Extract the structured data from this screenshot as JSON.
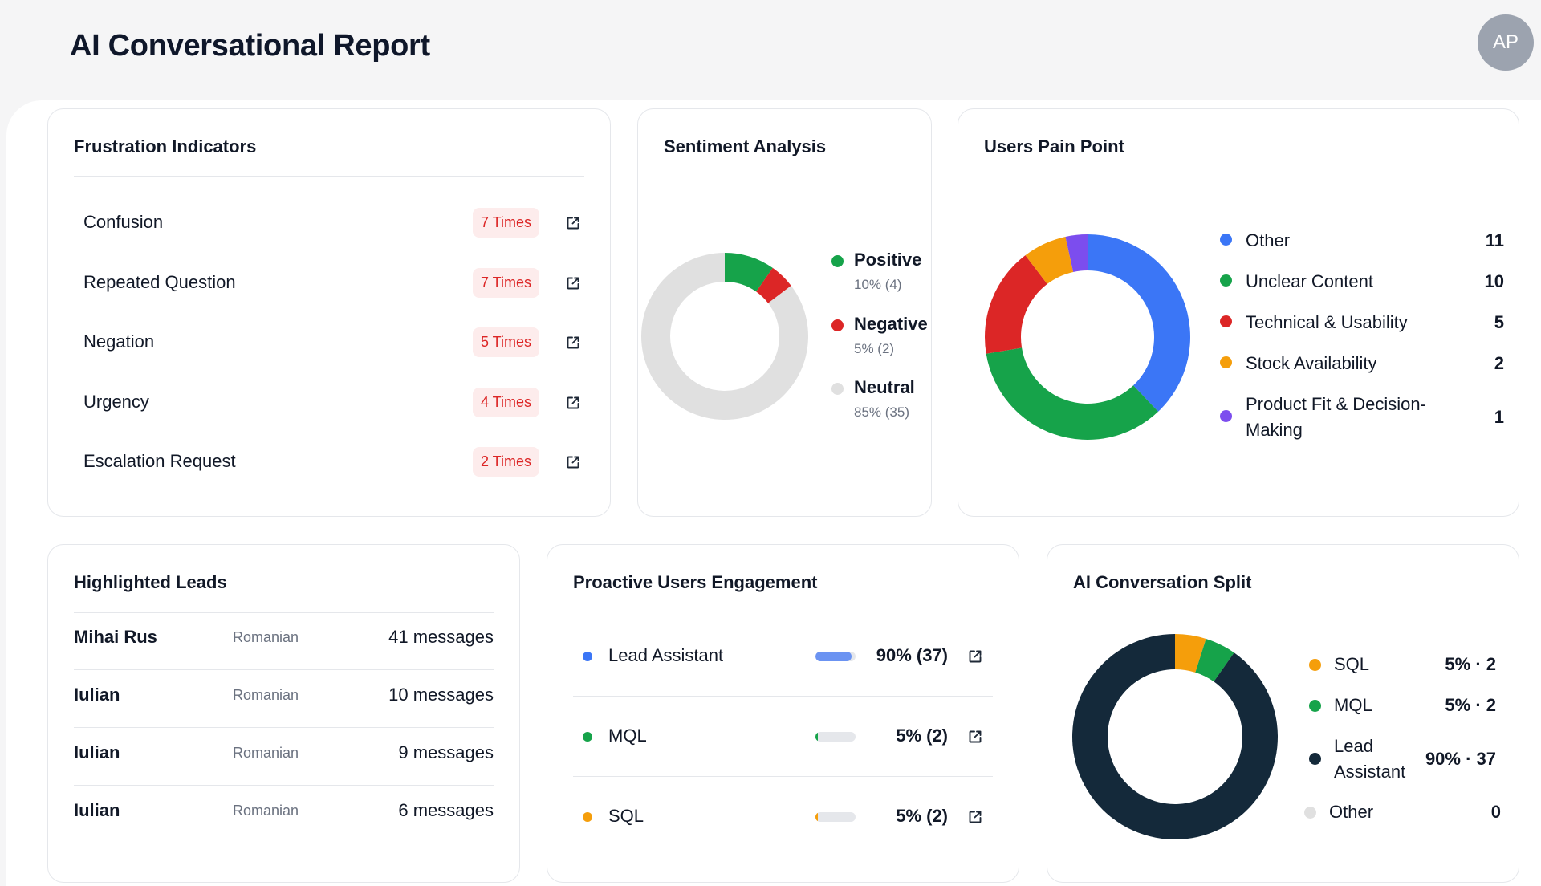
{
  "page": {
    "title": "AI Conversational Report",
    "avatar_initials": "AP"
  },
  "frustration": {
    "title": "Frustration Indicators",
    "items": [
      {
        "label": "Confusion",
        "count": "7 Times"
      },
      {
        "label": "Repeated Question",
        "count": "7 Times"
      },
      {
        "label": "Negation",
        "count": "5 Times"
      },
      {
        "label": "Urgency",
        "count": "4 Times"
      },
      {
        "label": "Escalation Request",
        "count": "2 Times"
      }
    ]
  },
  "sentiment": {
    "title": "Sentiment Analysis",
    "items": [
      {
        "label": "Positive",
        "sub": "10% (4)",
        "color": "#16a34a",
        "value": 4
      },
      {
        "label": "Negative",
        "sub": "5% (2)",
        "color": "#dc2626",
        "value": 2
      },
      {
        "label": "Neutral",
        "sub": "85% (35)",
        "color": "#e0e0e0",
        "value": 35
      }
    ]
  },
  "painpoint": {
    "title": "Users Pain Point",
    "items": [
      {
        "label": "Other",
        "value": "11",
        "color": "#3b76f6"
      },
      {
        "label": "Unclear Content",
        "value": "10",
        "color": "#16a34a"
      },
      {
        "label": "Technical & Usability",
        "value": "5",
        "color": "#dc2626"
      },
      {
        "label": "Stock Availability",
        "value": "2",
        "color": "#f59e0b"
      },
      {
        "label": "Product Fit & Decision-Making",
        "value": "1",
        "color": "#7c4dee"
      }
    ]
  },
  "leads": {
    "title": "Highlighted Leads",
    "rows": [
      {
        "name": "Mihai Rus",
        "language": "Romanian",
        "messages": "41 messages"
      },
      {
        "name": "Iulian",
        "language": "Romanian",
        "messages": "10 messages"
      },
      {
        "name": "Iulian",
        "language": "Romanian",
        "messages": "9 messages"
      },
      {
        "name": "Iulian",
        "language": "Romanian",
        "messages": "6 messages"
      }
    ]
  },
  "engagement": {
    "title": "Proactive Users Engagement",
    "rows": [
      {
        "label": "Lead Assistant",
        "value": "90% (37)",
        "color": "#3b76f6",
        "bar_color": "#6b93f2",
        "level": 0.9
      },
      {
        "label": "MQL",
        "value": "5% (2)",
        "color": "#16a34a",
        "bar_color": "#16a34a",
        "level": 0.05
      },
      {
        "label": "SQL",
        "value": "5% (2)",
        "color": "#f59e0b",
        "bar_color": "#f59e0b",
        "level": 0.05
      }
    ]
  },
  "split": {
    "title": "AI Conversation Split",
    "items": [
      {
        "label": "SQL",
        "value": "5% · 2",
        "color": "#f59e0b",
        "count": 2
      },
      {
        "label": "MQL",
        "value": "5% · 2",
        "color": "#16a34a",
        "count": 2
      },
      {
        "label": "Lead Assistant",
        "value": "90% · 37",
        "color": "#14293a",
        "count": 37
      },
      {
        "label": "Other",
        "value": "0",
        "color": "#e0e0e0",
        "count": 0
      }
    ]
  }
}
